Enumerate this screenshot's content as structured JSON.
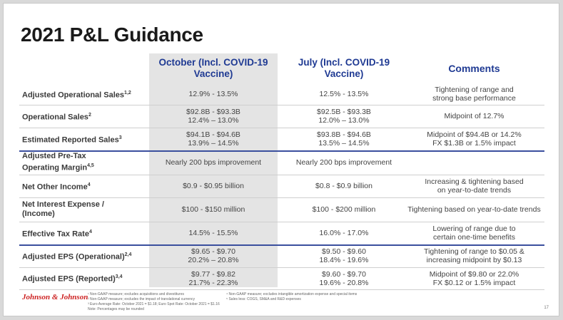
{
  "title": "2021 P&L Guidance",
  "headers": {
    "october_line1": "October (Incl. COVID-19",
    "october_line2": "Vaccine)",
    "july_line1": "July (Incl. COVID-19",
    "july_line2": "Vaccine)",
    "comments": "Comments"
  },
  "rows": [
    {
      "label": "Adjusted Operational Sales",
      "sup": "1,2",
      "oct1": "12.9% - 13.5%",
      "oct2": "",
      "jul1": "12.5% - 13.5%",
      "jul2": "",
      "com1": "Tightening of range and",
      "com2": "strong base performance"
    },
    {
      "label": "Operational Sales",
      "sup": "2",
      "oct1": "$92.8B - $93.3B",
      "oct2": "12.4% – 13.0%",
      "jul1": "$92.5B - $93.3B",
      "jul2": "12.0% – 13.0%",
      "com1": "Midpoint of 12.7%",
      "com2": ""
    },
    {
      "label": "Estimated Reported Sales",
      "sup": "3",
      "oct1": "$94.1B - $94.6B",
      "oct2": "13.9% – 14.5%",
      "jul1": "$93.8B - $94.6B",
      "jul2": "13.5% – 14.5%",
      "com1": "Midpoint of $94.4B or 14.2%",
      "com2": "FX $1.3B or 1.5% impact"
    },
    {
      "label": "Adjusted Pre-Tax",
      "label2": "Operating Margin",
      "sup": "4,5",
      "oct1": "Nearly 200 bps improvement",
      "oct2": "",
      "jul1": "Nearly 200 bps improvement",
      "jul2": "",
      "com1": "",
      "com2": ""
    },
    {
      "label": "Net Other Income",
      "sup": "4",
      "oct1": "$0.9 - $0.95 billion",
      "oct2": "",
      "jul1": "$0.8 - $0.9 billion",
      "jul2": "",
      "com1": "Increasing & tightening based",
      "com2": "on year-to-date trends"
    },
    {
      "label": "Net Interest Expense /",
      "label2": "(Income)",
      "sup": "",
      "oct1": "$100 - $150 million",
      "oct2": "",
      "jul1": "$100 - $200 million",
      "jul2": "",
      "com1": "Tightening based on year-to-date trends",
      "com2": ""
    },
    {
      "label": "Effective Tax Rate",
      "sup": "4",
      "oct1": "14.5% - 15.5%",
      "oct2": "",
      "jul1": "16.0% - 17.0%",
      "jul2": "",
      "com1": "Lowering of range due to",
      "com2": "certain one-time benefits"
    },
    {
      "label": "Adjusted EPS (Operational)",
      "sup": "2,4",
      "oct1": "$9.65 - $9.70",
      "oct2": "20.2% – 20.8%",
      "jul1": "$9.50 - $9.60",
      "jul2": "18.4% - 19.6%",
      "com1": "Tightening of range to $0.05 &",
      "com2": "increasing midpoint by $0.13"
    },
    {
      "label": "Adjusted EPS (Reported)",
      "sup": "3,4",
      "oct1": "$9.77 - $9.82",
      "oct2": "21.7% - 22.3%",
      "jul1": "$9.60 - $9.70",
      "jul2": "19.6% - 20.8%",
      "com1": "Midpoint of $9.80 or 22.0%",
      "com2": "FX $0.12 or 1.5% impact"
    }
  ],
  "footer": {
    "logo": "Johnson & Johnson",
    "fn1": "¹ Non-GAAP measure; excludes acquisitions and divestitures",
    "fn2": "² Non-GAAP measure; excludes the impact of translational currency",
    "fn3": "³ Euro Average Rate: October 2021 = $1.18; Euro Spot Rate: October 2021 = $1.16",
    "fn4": "Note: Percentages may be rounded",
    "fn5": "⁴ Non-GAAP measure; excludes intangible amortization expense and special items",
    "fn6": "⁵ Sales less: COGS, SM&A and R&D expenses",
    "page": "17"
  },
  "colors": {
    "header_blue": "#1f3a93",
    "rule_blue": "#3a4f9e",
    "logo_red": "#cc1f1f",
    "october_column": "#e4e4e4"
  }
}
